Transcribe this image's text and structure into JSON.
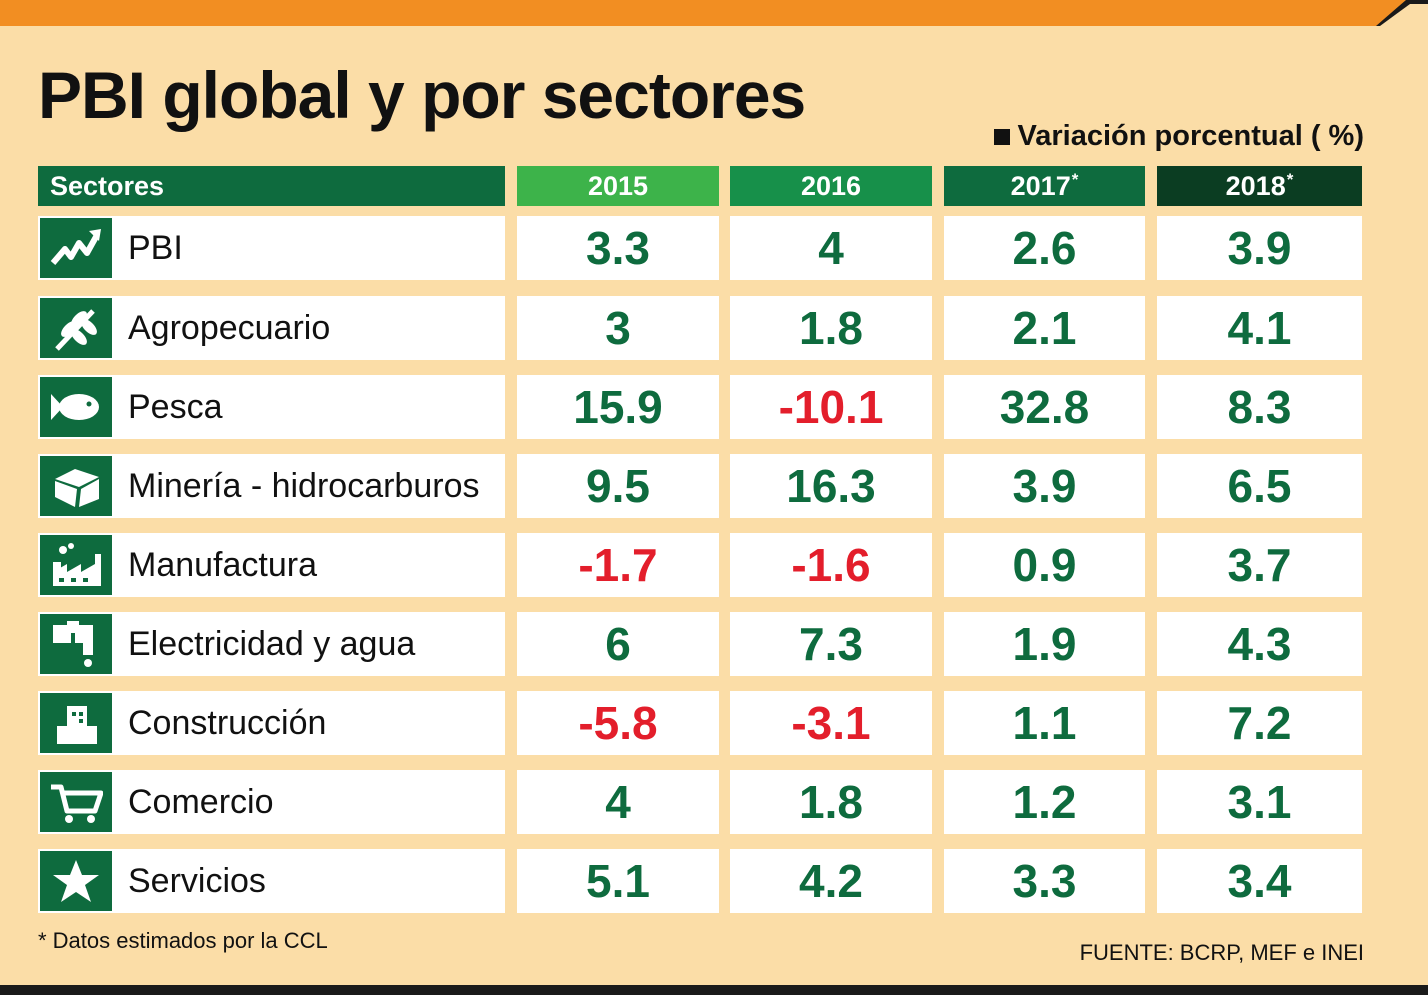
{
  "title": "PBI global y por sectores",
  "unit_label": "Variación porcentual ( %)",
  "colors": {
    "positive": "#0e6b3e",
    "negative": "#e31e2b",
    "h2015": "#3db34a",
    "h2016": "#17904a",
    "h2017": "#0e6b3e",
    "h2018": "#0b3d22"
  },
  "chart_data": {
    "type": "table",
    "title": "PBI global y por sectores",
    "unit": "Variación porcentual ( %)",
    "columns": [
      {
        "label": "Sectores",
        "suffix": ""
      },
      {
        "label": "2015",
        "suffix": ""
      },
      {
        "label": "2016",
        "suffix": ""
      },
      {
        "label": "2017",
        "suffix": "*"
      },
      {
        "label": "2018",
        "suffix": "*"
      }
    ],
    "rows": [
      {
        "sector": "PBI",
        "icon": "trend-up-icon",
        "values": [
          "3.3",
          "4",
          "2.6",
          "3.9"
        ]
      },
      {
        "sector": "Agropecuario",
        "icon": "wheat-icon",
        "values": [
          "3",
          "1.8",
          "2.1",
          "4.1"
        ]
      },
      {
        "sector": "Pesca",
        "icon": "fish-icon",
        "values": [
          "15.9",
          "-10.1",
          "32.8",
          "8.3"
        ]
      },
      {
        "sector": "Minería - hidrocarburos",
        "icon": "mineral-icon",
        "values": [
          "9.5",
          "16.3",
          "3.9",
          "6.5"
        ]
      },
      {
        "sector": "Manufactura",
        "icon": "factory-icon",
        "values": [
          "-1.7",
          "-1.6",
          "0.9",
          "3.7"
        ]
      },
      {
        "sector": "Electricidad y agua",
        "icon": "faucet-icon",
        "values": [
          "6",
          "7.3",
          "1.9",
          "4.3"
        ]
      },
      {
        "sector": "Construcción",
        "icon": "building-icon",
        "values": [
          "-5.8",
          "-3.1",
          "1.1",
          "7.2"
        ]
      },
      {
        "sector": "Comercio",
        "icon": "cart-icon",
        "values": [
          "4",
          "1.8",
          "1.2",
          "3.1"
        ]
      },
      {
        "sector": "Servicios",
        "icon": "star-icon",
        "values": [
          "5.1",
          "4.2",
          "3.3",
          "3.4"
        ]
      }
    ]
  },
  "footnote": "* Datos estimados por la CCL",
  "source": "FUENTE: BCRP, MEF  e INEI"
}
